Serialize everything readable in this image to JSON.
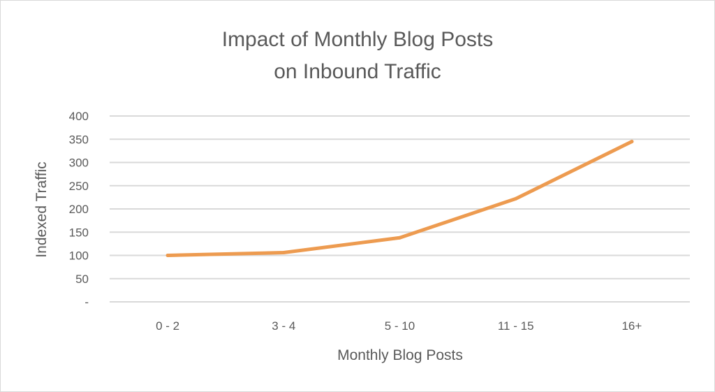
{
  "chart_data": {
    "type": "line",
    "title_line1": "Impact of Monthly Blog Posts",
    "title_line2": "on Inbound Traffic",
    "xlabel": "Monthly Blog Posts",
    "ylabel": "Indexed Traffic",
    "categories": [
      "0 - 2",
      "3 - 4",
      "5 - 10",
      "11 - 15",
      "16+"
    ],
    "values": [
      100,
      106,
      138,
      222,
      345
    ],
    "ylim": [
      0,
      400
    ],
    "y_ticks": [
      0,
      50,
      100,
      150,
      200,
      250,
      300,
      350,
      400
    ],
    "y_tick_labels": [
      "-",
      "50",
      "100",
      "150",
      "200",
      "250",
      "300",
      "350",
      "400"
    ],
    "grid": true,
    "line_color": "#ED9B50",
    "grid_color": "#D9D9D9",
    "text_color": "#595959"
  }
}
